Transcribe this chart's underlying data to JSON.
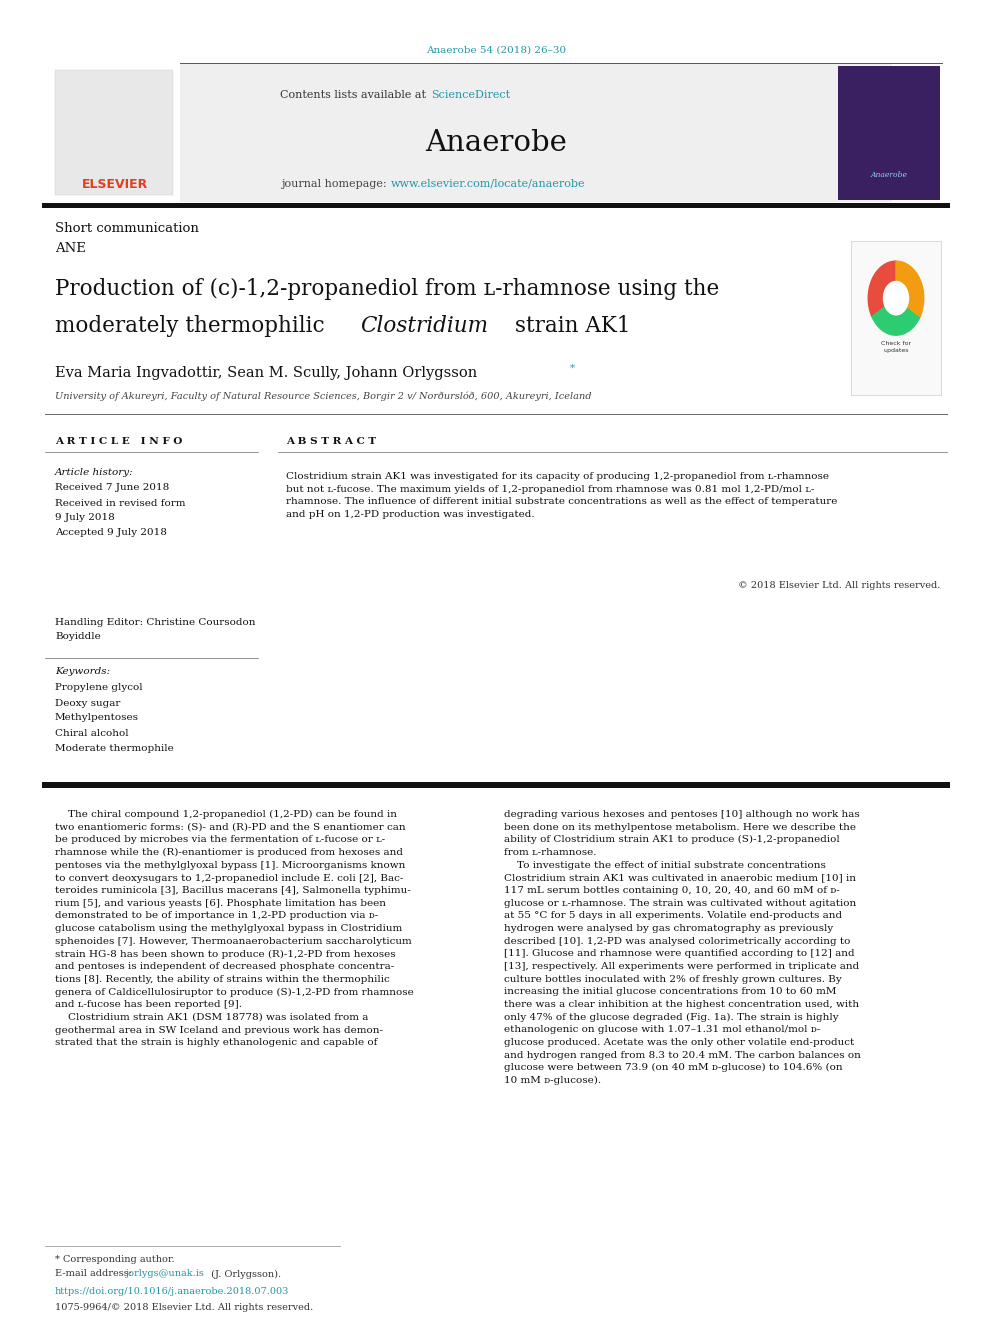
{
  "page_width": 9.92,
  "page_height": 13.23,
  "bg_color": "#ffffff",
  "header_journal_ref": "Anaerobe 54 (2018) 26–30",
  "header_ref_color": "#2196a8",
  "journal_banner_bg": "#f0f0f0",
  "journal_name": "Anaerobe",
  "contents_text": "Contents lists available at ",
  "sciencedirect_text": "ScienceDirect",
  "sciencedirect_color": "#2196a8",
  "homepage_text": "journal homepage: ",
  "homepage_url": "www.elsevier.com/locate/anaerobe",
  "homepage_url_color": "#2196a8",
  "section_label": "Short communication",
  "section_code": "ANE",
  "authors": "Eva Maria Ingvadottir, Sean M. Scully, Johann Orlygsson",
  "affiliation": "University of Akureyri, Faculty of Natural Resource Sciences, Borgir 2 v/ Norðurslóð, 600, Akureyri, Iceland",
  "article_info_header": "A R T I C L E   I N F O",
  "abstract_header": "A B S T R A C T",
  "article_history_label": "Article history:",
  "received1": "Received 7 June 2018",
  "received2": "Received in revised form",
  "received2b": "9 July 2018",
  "accepted": "Accepted 9 July 2018",
  "handling_editor_label": "Handling Editor: Christine Coursodon",
  "handling_editor_name": "Boyiddle",
  "keywords_label": "Keywords:",
  "keywords": [
    "Propylene glycol",
    "Deoxy sugar",
    "Methylpentoses",
    "Chiral alcohol",
    "Moderate thermophile"
  ],
  "copyright_text": "© 2018 Elsevier Ltd. All rights reserved.",
  "footer_corresponding": "* Corresponding author.",
  "footer_email_label": "E-mail address: ",
  "footer_email": "jorlygs@unak.is",
  "footer_email_color": "#2196a8",
  "footer_email_person": "(J. Orlygsson).",
  "footer_doi_color": "#2196a8",
  "footer_doi": "https://doi.org/10.1016/j.anaerobe.2018.07.003",
  "footer_issn": "1075-9964/© 2018 Elsevier Ltd. All rights reserved.",
  "col1_text": "    The chiral compound 1,2-propanediol (1,2-PD) can be found in\ntwo enantiomeric forms: (S)- and (R)-PD and the S enantiomer can\nbe produced by microbes via the fermentation of ʟ-fucose or ʟ-\nrhamnose while the (R)-enantiomer is produced from hexoses and\npentoses via the methylglyoxal bypass [1]. Microorganisms known\nto convert deoxysugars to 1,2-propanediol include E. coli [2], Bac-\nteroides ruminicola [3], Bacillus macerans [4], Salmonella typhimu-\nrium [5], and various yeasts [6]. Phosphate limitation has been\ndemonstrated to be of importance in 1,2-PD production via ᴅ-\nglucose catabolism using the methylglyoxal bypass in Clostridium\nsphenoides [7]. However, Thermoanaerobacterium saccharolyticum\nstrain HG-8 has been shown to produce (R)-1,2-PD from hexoses\nand pentoses is independent of decreased phosphate concentra-\ntions [8]. Recently, the ability of strains within the thermophilic\ngenera of Caldicellulosiruptor to produce (S)-1,2-PD from rhamnose\nand ʟ-fucose has been reported [9].\n    Clostridium strain AK1 (DSM 18778) was isolated from a\ngeothermal area in SW Iceland and previous work has demon-\nstrated that the strain is highly ethanologenic and capable of",
  "col2_text": "degrading various hexoses and pentoses [10] although no work has\nbeen done on its methylpentose metabolism. Here we describe the\nability of Clostridium strain AK1 to produce (S)-1,2-propanediol\nfrom ʟ-rhamnose.\n    To investigate the effect of initial substrate concentrations\nClostridium strain AK1 was cultivated in anaerobic medium [10] in\n117 mL serum bottles containing 0, 10, 20, 40, and 60 mM of ᴅ-\nglucose or ʟ-rhamnose. The strain was cultivated without agitation\nat 55 °C for 5 days in all experiments. Volatile end-products and\nhydrogen were analysed by gas chromatography as previously\ndescribed [10]. 1,2-PD was analysed colorimetrically according to\n[11]. Glucose and rhamnose were quantified according to [12] and\n[13], respectively. All experiments were performed in triplicate and\nculture bottles inoculated with 2% of freshly grown cultures. By\nincreasing the initial glucose concentrations from 10 to 60 mM\nthere was a clear inhibition at the highest concentration used, with\nonly 47% of the glucose degraded (Fig. 1a). The strain is highly\nethanologenic on glucose with 1.07–1.31 mol ethanol/mol ᴅ-\nglucose produced. Acetate was the only other volatile end-product\nand hydrogen ranged from 8.3 to 20.4 mM. The carbon balances on\nglucose were between 73.9 (on 40 mM ᴅ-glucose) to 104.6% (on\n10 mM ᴅ-glucose)."
}
